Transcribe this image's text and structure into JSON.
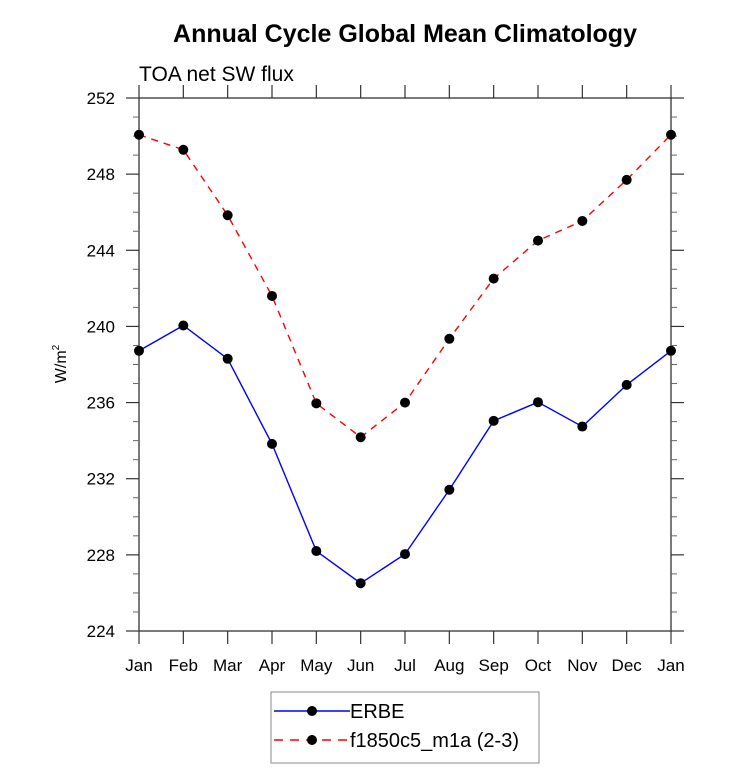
{
  "chart_data": {
    "type": "line",
    "title": "Annual Cycle Global Mean Climatology",
    "subtitle": "TOA net SW flux",
    "xlabel": "",
    "ylabel": "W/m",
    "ylabel_superscript": "2",
    "categories": [
      "Jan",
      "Feb",
      "Mar",
      "Apr",
      "May",
      "Jun",
      "Jul",
      "Aug",
      "Sep",
      "Oct",
      "Nov",
      "Dec",
      "Jan"
    ],
    "ylim": [
      224,
      252
    ],
    "yticks": [
      224,
      228,
      232,
      236,
      240,
      244,
      248,
      252
    ],
    "y_minor_step": 1,
    "grid": false,
    "legend_placement": "bottom-center",
    "series": [
      {
        "name": "ERBE",
        "color": "#0000ff",
        "line_style": "solid",
        "marker": "filled-circle",
        "marker_color": "#000000",
        "values": [
          238.72,
          240.05,
          238.3,
          233.83,
          228.2,
          226.51,
          228.04,
          231.42,
          235.04,
          236.02,
          234.74,
          236.93,
          238.72
        ]
      },
      {
        "name": "f1850c5_m1a (2-3)",
        "color": "#ff0000",
        "line_style": "dashed",
        "marker": "filled-circle",
        "marker_color": "#000000",
        "values": [
          250.07,
          249.28,
          245.84,
          241.6,
          235.96,
          234.18,
          236.0,
          239.35,
          242.51,
          244.51,
          245.54,
          247.7,
          250.07
        ]
      }
    ]
  }
}
